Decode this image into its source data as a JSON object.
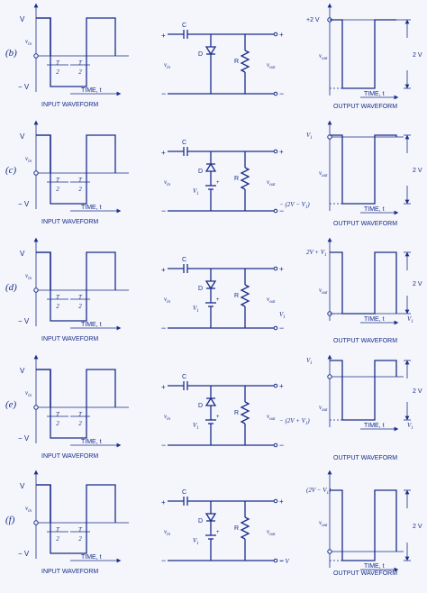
{
  "common": {
    "v_pos": "V",
    "v_neg": "− V",
    "v_in": "v",
    "v_in_sub": "in",
    "v_out": "v",
    "v_out_sub": "out",
    "half_t_num": "T",
    "half_t_den": "2",
    "time_label": "TIME, t",
    "cap_label": "C",
    "diode_label": "D",
    "res_label": "R",
    "vbat_label": "V",
    "vbat_sub": "1",
    "plus": "+",
    "minus": "−",
    "input_caption": "INPUT WAVEFORM",
    "output_caption": "OUTPUT WAVEFORM"
  },
  "rows": [
    {
      "label": "(b)",
      "out_top": "+2 V",
      "out_bottom": "",
      "span": "2 V",
      "v1_marker": ""
    },
    {
      "label": "(c)",
      "out_top": "V",
      "out_bottom": "− (2V − V",
      "span": "2 V",
      "v1_marker": ""
    },
    {
      "label": "(d)",
      "out_top": "2V + V",
      "out_bottom": "V",
      "span": "2 V",
      "v1_marker": "V"
    },
    {
      "label": "(e)",
      "out_top": "V",
      "out_bottom": "− (2V + V",
      "span": "2 V",
      "v1_marker": "V"
    },
    {
      "label": "(f)",
      "out_top": "(2V − V",
      "out_bottom": "− V",
      "span": "2 V",
      "v1_marker": ""
    }
  ]
}
